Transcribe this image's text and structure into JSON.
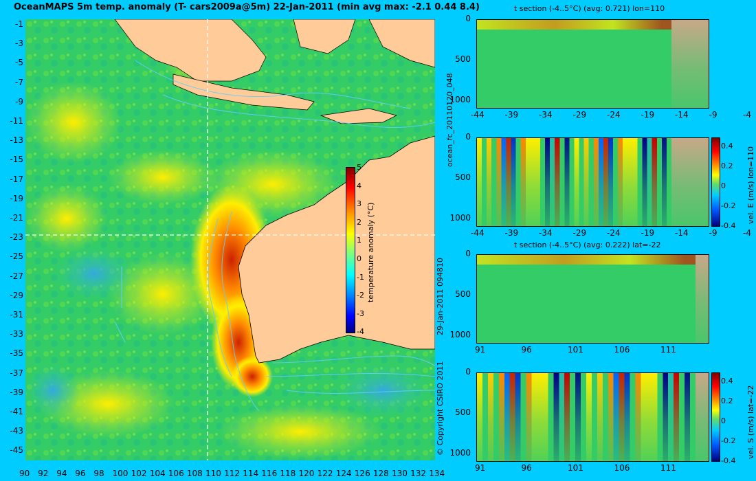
{
  "title": "OceanMAPS 5m temp. anomaly (T- cars2009a@5m) 22-Jan-2011 (min avg max: -2.1 0.44 8.4)",
  "map": {
    "lon_ticks": [
      "90",
      "92",
      "94",
      "96",
      "98",
      "100",
      "102",
      "104",
      "106",
      "108",
      "110",
      "112",
      "114",
      "116",
      "118",
      "120",
      "122",
      "124",
      "126",
      "128",
      "130",
      "132",
      "134"
    ],
    "lat_ticks": [
      "-1",
      "-3",
      "-5",
      "-7",
      "-9",
      "-11",
      "-13",
      "-15",
      "-17",
      "-19",
      "-21",
      "-23",
      "-25",
      "-27",
      "-29",
      "-31",
      "-33",
      "-35",
      "-37",
      "-39",
      "-41",
      "-43",
      "-45"
    ],
    "colorbar": {
      "label": "temperature anomaly (°C)",
      "ticks": [
        "5",
        "4",
        "3",
        "2",
        "1",
        "0",
        "-1",
        "-2",
        "-3",
        "-4"
      ],
      "colors": [
        "#00007f",
        "#0000ff",
        "#007fff",
        "#00ffff",
        "#7fff7f",
        "#ffff00",
        "#ff7f00",
        "#ff0000",
        "#7f0000"
      ]
    },
    "colors": {
      "ocean": "#33cc66",
      "land": "#ffcc99",
      "contour": "#66ccff"
    },
    "crosshair": {
      "lon": "110",
      "lat": "-22"
    }
  },
  "sections": [
    {
      "title": "t section (-4..5°C) (avg: 0.721) lon=110",
      "y_ticks": [
        "0",
        "500",
        "1000"
      ],
      "x_ticks": [
        "-44",
        "-39",
        "-34",
        "-29",
        "-24",
        "-19",
        "-14",
        "-9",
        "-4"
      ]
    },
    {
      "title": "",
      "y_ticks": [
        "0",
        "500",
        "1000"
      ],
      "x_ticks": [
        "-44",
        "-39",
        "-34",
        "-29",
        "-24",
        "-19",
        "-14",
        "-9",
        "-4"
      ],
      "colorbar_label": "vel. E (m/s) lon=110",
      "colorbar_ticks": [
        "0.4",
        "0.2",
        "0",
        "-0.2",
        "-0.4"
      ]
    },
    {
      "title": "t section (-4..5°C) (avg: 0.222) lat=-22",
      "y_ticks": [
        "0",
        "500",
        "1000"
      ],
      "x_ticks": [
        "91",
        "96",
        "101",
        "106",
        "111"
      ]
    },
    {
      "title": "",
      "y_ticks": [
        "0",
        "500",
        "1000"
      ],
      "x_ticks": [
        "91",
        "96",
        "101",
        "106",
        "111"
      ],
      "colorbar_label": "vel. S (m/s) lat=-22",
      "colorbar_ticks": [
        "0.4",
        "0.2",
        "0",
        "-0.2",
        "-0.4"
      ]
    }
  ],
  "side_labels": {
    "forecast": "ocean_fc_20110120_048",
    "timestamp": "29-Jan-2011 094810",
    "copyright": "© Copyright CSIRO 2011"
  }
}
